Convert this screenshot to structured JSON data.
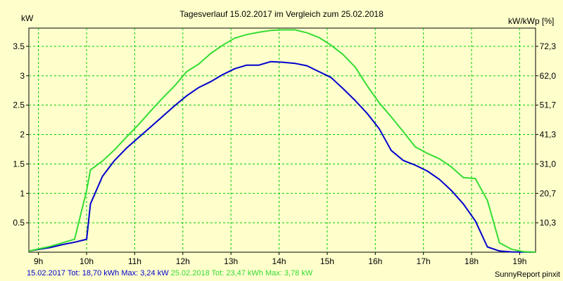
{
  "chart_data": {
    "type": "line",
    "title": "Tagesverlauf 15.02.2017 im Vergleich zum 25.02.2018",
    "ylabel": "kW",
    "ylabel_right": "kW/kWp [%]",
    "xlim": [
      8.8,
      19.33
    ],
    "ylim": [
      0,
      3.81
    ],
    "x_ticks": [
      9,
      10,
      11,
      12,
      13,
      14,
      15,
      16,
      17,
      18,
      19
    ],
    "x_tick_labels": [
      "9h",
      "10h",
      "11h",
      "12h",
      "13h",
      "14h",
      "15h",
      "16h",
      "17h",
      "18h",
      "19h"
    ],
    "y_ticks": [
      0.5,
      1,
      1.5,
      2,
      2.5,
      3,
      3.5
    ],
    "y_tick_labels": [
      "0.5",
      "1",
      "1.5",
      "2",
      "2.5",
      "3",
      "3.5"
    ],
    "y_right_ticks": [
      0.5,
      1,
      1.5,
      2,
      2.5,
      3,
      3.5
    ],
    "y_right_tick_labels": [
      "10,3",
      "20,7",
      "31,0",
      "41,3",
      "51,7",
      "62,0",
      "72,3"
    ],
    "grid": true,
    "plot_bg": "#FFFFCC",
    "grid_color": "#00CC00",
    "series": [
      {
        "color": "#0000CC",
        "x": [
          8.8,
          9.25,
          9.5,
          9.75,
          10.0,
          10.08,
          10.33,
          10.58,
          10.83,
          11.08,
          11.33,
          11.58,
          11.83,
          12.08,
          12.33,
          12.58,
          12.83,
          13.08,
          13.33,
          13.58,
          13.83,
          14.08,
          14.33,
          14.58,
          14.83,
          15.08,
          15.33,
          15.58,
          15.83,
          16.08,
          16.33,
          16.58,
          16.83,
          17.08,
          17.33,
          17.58,
          17.83,
          18.08,
          18.33,
          18.58,
          18.83,
          19.08,
          19.33
        ],
        "y": [
          0.02,
          0.08,
          0.13,
          0.17,
          0.22,
          0.82,
          1.29,
          1.56,
          1.77,
          1.95,
          2.13,
          2.31,
          2.49,
          2.66,
          2.8,
          2.9,
          3.02,
          3.12,
          3.18,
          3.18,
          3.24,
          3.23,
          3.21,
          3.17,
          3.07,
          2.97,
          2.78,
          2.58,
          2.36,
          2.1,
          1.73,
          1.56,
          1.48,
          1.38,
          1.24,
          1.05,
          0.82,
          0.53,
          0.09,
          0.02,
          0.005,
          0.003,
          0.0
        ]
      },
      {
        "color": "#33DD33",
        "x": [
          8.8,
          9.25,
          9.5,
          9.75,
          10.0,
          10.08,
          10.33,
          10.58,
          10.83,
          11.08,
          11.33,
          11.58,
          11.83,
          12.08,
          12.33,
          12.58,
          12.83,
          13.08,
          13.33,
          13.58,
          13.83,
          14.08,
          14.33,
          14.58,
          14.83,
          15.08,
          15.33,
          15.58,
          15.83,
          16.08,
          16.33,
          16.58,
          16.83,
          17.08,
          17.33,
          17.58,
          17.83,
          18.08,
          18.33,
          18.58,
          18.83,
          19.08,
          19.33
        ],
        "y": [
          0.02,
          0.1,
          0.16,
          0.22,
          1.05,
          1.4,
          1.55,
          1.74,
          1.96,
          2.17,
          2.4,
          2.62,
          2.83,
          3.07,
          3.2,
          3.38,
          3.52,
          3.64,
          3.7,
          3.74,
          3.77,
          3.78,
          3.78,
          3.73,
          3.65,
          3.52,
          3.36,
          3.15,
          2.83,
          2.54,
          2.3,
          2.05,
          1.79,
          1.68,
          1.59,
          1.45,
          1.27,
          1.25,
          0.88,
          0.16,
          0.05,
          0.01,
          0.0
        ]
      }
    ],
    "footer": [
      {
        "text": "15.02.2017 Tot: 18,70 kWh Max: 3,24 kW",
        "color": "#0000CC"
      },
      {
        "text": "25.02.2018 Tot: 23,47 kWh Max: 3,78 kW",
        "color": "#33DD33"
      }
    ],
    "credit": "SunnyReport pinxit"
  }
}
